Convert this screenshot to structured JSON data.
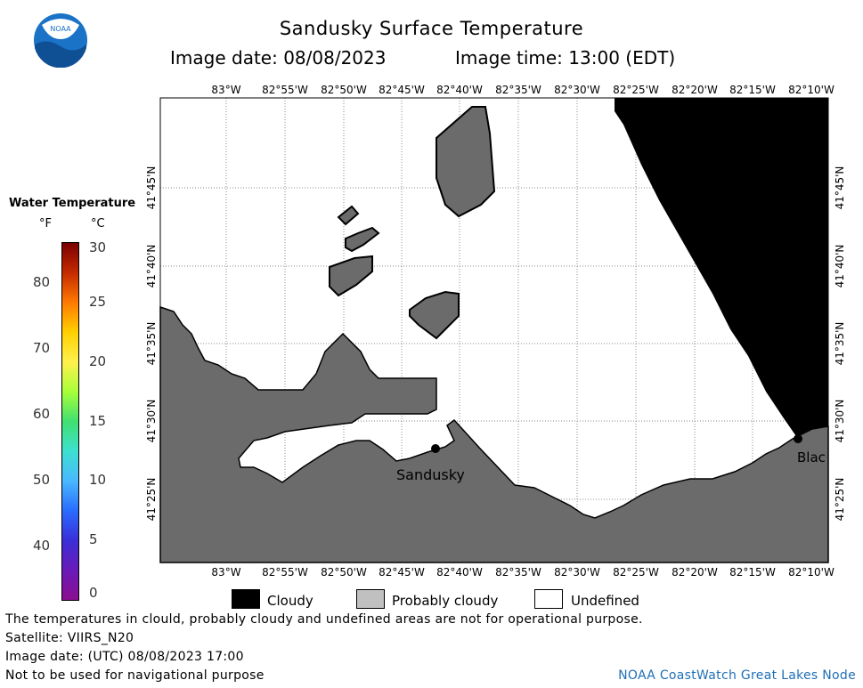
{
  "title": "Sandusky Surface Temperature",
  "image_date_line": "Image date: 08/08/2023",
  "image_time_line": "Image time: 13:00 (EDT)",
  "logo_text": "NOAA",
  "scale": {
    "title": "Water Temperature",
    "unit_f": "°F",
    "unit_c": "°C",
    "f_labels": [
      "80",
      "70",
      "60",
      "50",
      "40"
    ],
    "c_labels": [
      "30",
      "25",
      "20",
      "15",
      "10",
      "5",
      "0"
    ]
  },
  "lon_labels": [
    "83°W",
    "82°55'W",
    "82°50'W",
    "82°45'W",
    "82°40'W",
    "82°35'W",
    "82°30'W",
    "82°25'W",
    "82°20'W",
    "82°15'W",
    "82°10'W"
  ],
  "lat_labels": [
    "41°45'N",
    "41°40'N",
    "41°35'N",
    "41°30'N",
    "41°25'N"
  ],
  "places": {
    "sandusky": "Sandusky",
    "blackpoint": "Blac"
  },
  "legend": {
    "cloudy": "Cloudy",
    "probably_cloudy": "Probably cloudy",
    "undefined": "Undefined"
  },
  "footer": {
    "disclaimer": "The temperatures in clould, probably cloudy and undefined areas are not for operational purpose.",
    "satellite": "Satellite: VIIRS_N20",
    "utc_date": "Image date: (UTC) 08/08/2023  17:00",
    "navigation": "Not to be used for navigational purpose",
    "credit": "NOAA CoastWatch Great Lakes Node"
  },
  "colors": {
    "land": "#6b6b6b",
    "cloudy": "#000000",
    "probably_cloudy": "#c0c0c0",
    "undefined": "#ffffff",
    "credit": "#1f6fb5"
  }
}
